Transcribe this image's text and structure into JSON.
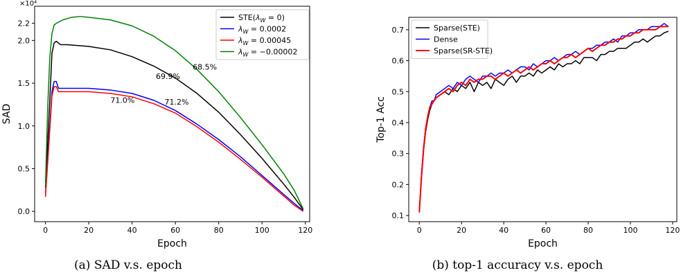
{
  "chart_data": [
    {
      "type": "line",
      "caption": "(a) SAD v.s. epoch",
      "xlabel": "Epoch",
      "ylabel": "SAD",
      "y_multiplier": "×10⁴",
      "xlim": [
        -5,
        122
      ],
      "ylim": [
        -0.12,
        2.4
      ],
      "xticks": [
        0,
        20,
        40,
        60,
        80,
        100,
        120
      ],
      "yticks": [
        0.0,
        0.5,
        1.0,
        1.5,
        2.0,
        2.2
      ],
      "ytick_labels": [
        "0.0",
        "0.5",
        "1.0",
        "1.5",
        "2.0",
        "2.2"
      ],
      "legend_position": "top-right",
      "series": [
        {
          "name": "STE(λ_W = 0)",
          "color": "#000000",
          "x": [
            0,
            2,
            3,
            4,
            5,
            7,
            10,
            20,
            30,
            40,
            50,
            60,
            70,
            80,
            90,
            100,
            110,
            115,
            119
          ],
          "y": [
            0.28,
            1.3,
            1.85,
            1.97,
            1.99,
            1.95,
            1.95,
            1.93,
            1.89,
            1.81,
            1.7,
            1.56,
            1.38,
            1.16,
            0.9,
            0.62,
            0.32,
            0.16,
            0.02
          ]
        },
        {
          "name": "λ_W = 0.0002",
          "color": "#0000ff",
          "x": [
            0,
            2,
            3,
            4,
            5,
            6,
            8,
            10,
            20,
            30,
            40,
            50,
            60,
            70,
            80,
            90,
            100,
            110,
            115,
            119
          ],
          "y": [
            0.2,
            1.0,
            1.4,
            1.52,
            1.52,
            1.44,
            1.44,
            1.44,
            1.44,
            1.42,
            1.38,
            1.3,
            1.18,
            1.02,
            0.84,
            0.64,
            0.42,
            0.2,
            0.09,
            0.01
          ]
        },
        {
          "name": "λ_W = 0.00045",
          "color": "#ff0000",
          "x": [
            0,
            2,
            3,
            4,
            5,
            6,
            8,
            10,
            20,
            30,
            40,
            50,
            60,
            70,
            80,
            90,
            100,
            110,
            115,
            119
          ],
          "y": [
            0.17,
            0.95,
            1.35,
            1.46,
            1.46,
            1.4,
            1.4,
            1.4,
            1.4,
            1.38,
            1.34,
            1.26,
            1.15,
            0.99,
            0.81,
            0.61,
            0.4,
            0.18,
            0.07,
            0.0
          ]
        },
        {
          "name": "λ_W = −0.00002",
          "color": "#008000",
          "x": [
            0,
            1,
            2,
            3,
            4,
            5,
            8,
            12,
            16,
            20,
            30,
            40,
            50,
            60,
            70,
            80,
            90,
            100,
            110,
            115,
            119
          ],
          "y": [
            0.3,
            1.2,
            1.8,
            2.08,
            2.18,
            2.2,
            2.24,
            2.27,
            2.28,
            2.27,
            2.24,
            2.17,
            2.05,
            1.88,
            1.66,
            1.4,
            1.1,
            0.78,
            0.44,
            0.24,
            0.03
          ]
        }
      ],
      "annotations": [
        {
          "text": "68.5%",
          "x": 68,
          "y": 1.66
        },
        {
          "text": "69.9%",
          "x": 51,
          "y": 1.55
        },
        {
          "text": "71.0%",
          "x": 30,
          "y": 1.27
        },
        {
          "text": "71.2%",
          "x": 55,
          "y": 1.25
        }
      ]
    },
    {
      "type": "line",
      "caption": "(b) top-1 accuracy v.s. epoch",
      "xlabel": "Epoch",
      "ylabel": "Top-1 Acc",
      "xlim": [
        -5,
        122
      ],
      "ylim": [
        0.08,
        0.74
      ],
      "xticks": [
        0,
        20,
        40,
        60,
        80,
        100,
        120
      ],
      "yticks": [
        0.1,
        0.2,
        0.3,
        0.4,
        0.5,
        0.6,
        0.7
      ],
      "ytick_labels": [
        "0.1",
        "0.2",
        "0.3",
        "0.4",
        "0.5",
        "0.6",
        "0.7"
      ],
      "legend_position": "top-left",
      "series": [
        {
          "name": "Sparse(STE)",
          "color": "#000000",
          "x": [
            0,
            1,
            2,
            3,
            4,
            5,
            6,
            7,
            8,
            10,
            12,
            14,
            16,
            18,
            20,
            22,
            24,
            26,
            28,
            30,
            32,
            34,
            36,
            38,
            40,
            42,
            44,
            46,
            48,
            50,
            52,
            54,
            56,
            58,
            60,
            62,
            64,
            66,
            68,
            70,
            72,
            74,
            76,
            78,
            80,
            82,
            84,
            86,
            88,
            90,
            92,
            94,
            96,
            98,
            100,
            102,
            104,
            106,
            108,
            110,
            112,
            114,
            116,
            118
          ],
          "y": [
            0.11,
            0.22,
            0.31,
            0.37,
            0.41,
            0.44,
            0.46,
            0.47,
            0.48,
            0.49,
            0.5,
            0.49,
            0.51,
            0.5,
            0.52,
            0.51,
            0.53,
            0.5,
            0.53,
            0.52,
            0.53,
            0.51,
            0.54,
            0.53,
            0.52,
            0.54,
            0.55,
            0.53,
            0.55,
            0.55,
            0.56,
            0.55,
            0.57,
            0.56,
            0.57,
            0.58,
            0.57,
            0.59,
            0.58,
            0.59,
            0.59,
            0.6,
            0.59,
            0.61,
            0.61,
            0.61,
            0.6,
            0.62,
            0.62,
            0.63,
            0.63,
            0.64,
            0.64,
            0.64,
            0.65,
            0.66,
            0.66,
            0.67,
            0.66,
            0.67,
            0.68,
            0.68,
            0.69,
            0.695
          ]
        },
        {
          "name": "Dense",
          "color": "#0000ff",
          "x": [
            0,
            1,
            2,
            3,
            4,
            5,
            6,
            7,
            8,
            10,
            12,
            14,
            16,
            18,
            20,
            22,
            24,
            26,
            28,
            30,
            32,
            34,
            36,
            38,
            40,
            42,
            44,
            46,
            48,
            50,
            52,
            54,
            56,
            58,
            60,
            62,
            64,
            66,
            68,
            70,
            72,
            74,
            76,
            78,
            80,
            82,
            84,
            86,
            88,
            90,
            92,
            94,
            96,
            98,
            100,
            102,
            104,
            106,
            108,
            110,
            112,
            114,
            116,
            118
          ],
          "y": [
            0.11,
            0.23,
            0.32,
            0.38,
            0.42,
            0.45,
            0.47,
            0.47,
            0.49,
            0.5,
            0.51,
            0.52,
            0.51,
            0.53,
            0.52,
            0.54,
            0.55,
            0.54,
            0.53,
            0.55,
            0.55,
            0.56,
            0.55,
            0.56,
            0.56,
            0.57,
            0.56,
            0.57,
            0.58,
            0.58,
            0.57,
            0.59,
            0.58,
            0.59,
            0.6,
            0.6,
            0.61,
            0.6,
            0.61,
            0.62,
            0.62,
            0.63,
            0.62,
            0.63,
            0.64,
            0.64,
            0.65,
            0.65,
            0.66,
            0.66,
            0.67,
            0.66,
            0.68,
            0.68,
            0.69,
            0.69,
            0.7,
            0.7,
            0.7,
            0.71,
            0.71,
            0.71,
            0.72,
            0.71
          ]
        },
        {
          "name": "Sparse(SR-STE)",
          "color": "#ff0000",
          "x": [
            0,
            1,
            2,
            3,
            4,
            5,
            6,
            7,
            8,
            10,
            12,
            14,
            16,
            18,
            20,
            22,
            24,
            26,
            28,
            30,
            32,
            34,
            36,
            38,
            40,
            42,
            44,
            46,
            48,
            50,
            52,
            54,
            56,
            58,
            60,
            62,
            64,
            66,
            68,
            70,
            72,
            74,
            76,
            78,
            80,
            82,
            84,
            86,
            88,
            90,
            92,
            94,
            96,
            98,
            100,
            102,
            104,
            106,
            108,
            110,
            112,
            114,
            116,
            118
          ],
          "y": [
            0.11,
            0.22,
            0.31,
            0.38,
            0.42,
            0.45,
            0.46,
            0.47,
            0.48,
            0.49,
            0.5,
            0.51,
            0.5,
            0.52,
            0.53,
            0.52,
            0.54,
            0.53,
            0.54,
            0.54,
            0.55,
            0.55,
            0.54,
            0.55,
            0.56,
            0.55,
            0.56,
            0.57,
            0.56,
            0.57,
            0.58,
            0.57,
            0.58,
            0.59,
            0.59,
            0.6,
            0.59,
            0.6,
            0.61,
            0.61,
            0.62,
            0.61,
            0.62,
            0.63,
            0.64,
            0.63,
            0.64,
            0.65,
            0.65,
            0.66,
            0.66,
            0.67,
            0.67,
            0.68,
            0.68,
            0.69,
            0.69,
            0.7,
            0.7,
            0.7,
            0.7,
            0.71,
            0.71,
            0.71
          ]
        }
      ]
    }
  ]
}
